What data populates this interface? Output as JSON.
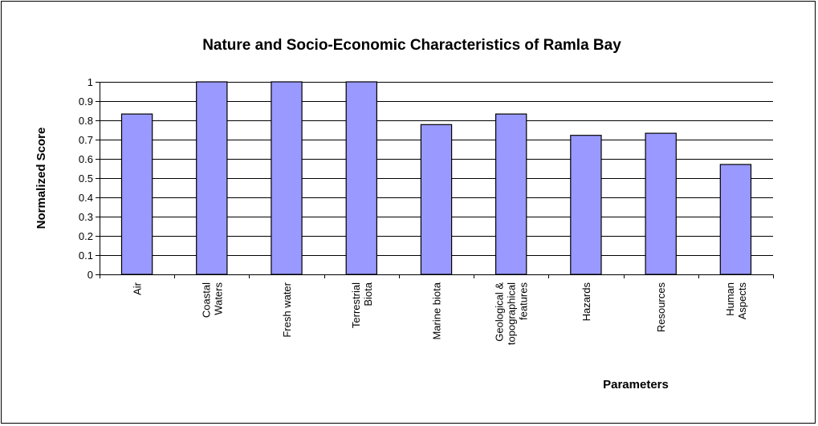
{
  "chart_data": {
    "type": "bar",
    "title": "Nature and Socio-Economic Characteristics of Ramla Bay",
    "xlabel": "Parameters",
    "ylabel": "Normalized Score",
    "ylim": [
      0,
      1
    ],
    "yticks": [
      "0",
      "0.1",
      "0.2",
      "0.3",
      "0.4",
      "0.5",
      "0.6",
      "0.7",
      "0.8",
      "0.9",
      "1"
    ],
    "grid": true,
    "legend": "none",
    "bar_color": "#9999ff",
    "categories": [
      [
        "Air"
      ],
      [
        "Coastal",
        "Waters"
      ],
      [
        "Fresh water"
      ],
      [
        "Terrestrial",
        "Biota"
      ],
      [
        "Marine biota"
      ],
      [
        "Geological &",
        "topographical",
        "features"
      ],
      [
        "Hazards"
      ],
      [
        "Resources"
      ],
      [
        "Human",
        "Aspects"
      ]
    ],
    "values": [
      0.833,
      1.0,
      1.0,
      1.0,
      0.778,
      0.833,
      0.722,
      0.733,
      0.571
    ]
  }
}
